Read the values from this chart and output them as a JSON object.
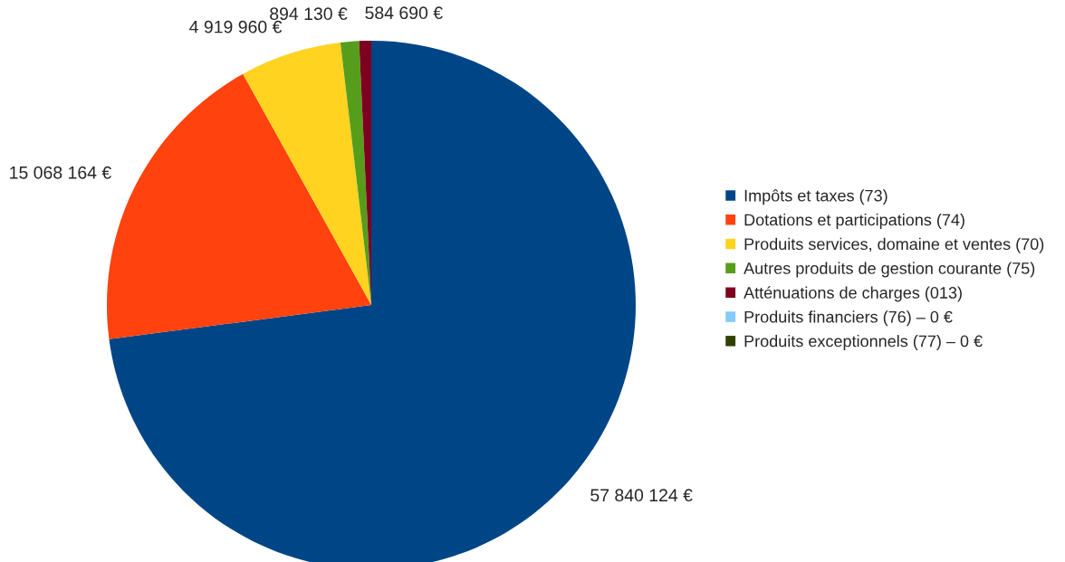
{
  "chart_data": {
    "type": "pie",
    "categories": [
      "Impôts et taxes (73)",
      "Dotations et participations (74)",
      "Produits services, domaine et ventes (70)",
      "Autres produits de gestion courante (75)",
      "Atténuations de charges (013)",
      "Produits financiers (76) – 0 €",
      "Produits exceptionnels (77) – 0 €"
    ],
    "values": [
      57840124,
      15068164,
      4919960,
      894130,
      584690,
      0,
      0
    ],
    "value_labels": [
      "57 840 124 €",
      "15 068 164 €",
      "4 919 960 €",
      "894 130 €",
      "584 690 €",
      null,
      null
    ],
    "colors": [
      "#004586",
      "#ff420e",
      "#ffd320",
      "#579d1c",
      "#7e0021",
      "#83caff",
      "#314004"
    ],
    "legend": "right"
  }
}
